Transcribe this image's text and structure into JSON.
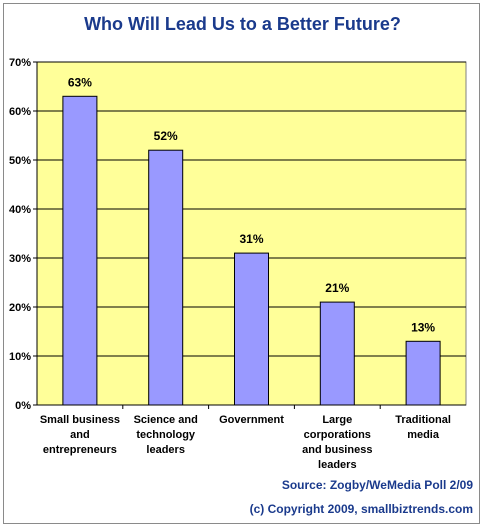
{
  "chart_data": {
    "type": "bar",
    "title": "Who Will Lead Us to a Better Future?",
    "categories": [
      [
        "Small business",
        "and",
        "entrepreneurs"
      ],
      [
        "Science and",
        "technology",
        "leaders"
      ],
      [
        "Government"
      ],
      [
        "Large",
        "corporations",
        "and business",
        "leaders"
      ],
      [
        "Traditional",
        "media"
      ]
    ],
    "values": [
      63,
      52,
      31,
      21,
      13
    ],
    "data_labels": [
      "63%",
      "52%",
      "31%",
      "21%",
      "13%"
    ],
    "ylim": [
      0,
      70
    ],
    "yticks": [
      "0%",
      "10%",
      "20%",
      "30%",
      "40%",
      "50%",
      "60%",
      "70%"
    ],
    "grid": true,
    "bar_color": "#9999ff",
    "plot_background": "#ffff99"
  },
  "footer": {
    "source": "Source: Zogby/WeMedia Poll 2/09",
    "copyright": "(c) Copyright 2009, smallbiztrends.com"
  }
}
